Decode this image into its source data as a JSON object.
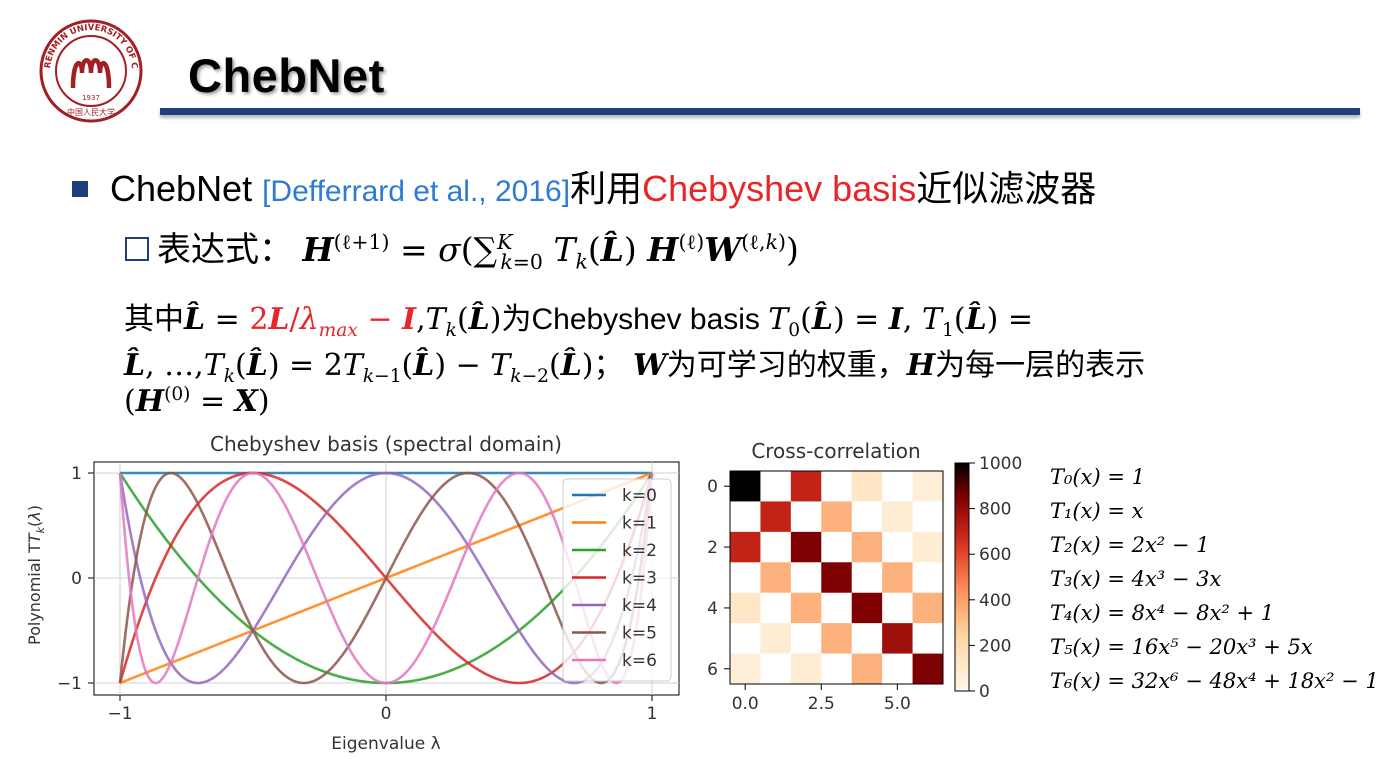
{
  "title": "ChebNet",
  "logo": {
    "text_top": "RENMIN UNIVERSITY OF CHINA",
    "year": "1937",
    "text_bottom": "中国人民大学"
  },
  "bullet1": {
    "lead": "ChebNet ",
    "cite": "[Defferrard et al., 2016]",
    "mid": "利用",
    "highlight": "Chebyshev basis",
    "tail": "近似滤波器"
  },
  "bullet2": {
    "label": "表达式："
  },
  "para": {
    "prefix": "其中",
    "mid1": "为Chebyshev basis ",
    "line2_mid": "为可学习的权重，",
    "line2_tail": "为每一层的表示"
  },
  "chart_data": [
    {
      "type": "line",
      "title": "Chebyshev basis (spectral domain)",
      "xlabel": "Eigenvalue λ",
      "ylabel": "Polynomial T",
      "xlim": [
        -1,
        1
      ],
      "ylim": [
        -1,
        1
      ],
      "xticks": [
        "−1",
        "0",
        "1"
      ],
      "yticks": [
        "1",
        "0",
        "−1"
      ],
      "grid": true,
      "legend_position": "right",
      "series": [
        {
          "name": "k=0",
          "k": 0,
          "color": "#1f77b4"
        },
        {
          "name": "k=1",
          "k": 1,
          "color": "#ff7f0e"
        },
        {
          "name": "k=2",
          "k": 2,
          "color": "#2ca02c"
        },
        {
          "name": "k=3",
          "k": 3,
          "color": "#d62728"
        },
        {
          "name": "k=4",
          "k": 4,
          "color": "#9467bd"
        },
        {
          "name": "k=5",
          "k": 5,
          "color": "#8c564b"
        },
        {
          "name": "k=6",
          "k": 6,
          "color": "#e377c2"
        }
      ]
    },
    {
      "type": "heatmap",
      "title": "Cross-correlation",
      "colorbar_ticks": [
        "1000",
        "800",
        "600",
        "400",
        "200",
        "0"
      ],
      "yticks": [
        "0",
        "2",
        "4",
        "6"
      ],
      "xticks": [
        "0.0",
        "2.5",
        "5.0"
      ],
      "vmin": 0,
      "vmax": 1000,
      "matrix": [
        [
          1000,
          0,
          700,
          0,
          120,
          0,
          60
        ],
        [
          0,
          700,
          0,
          350,
          0,
          80,
          0
        ],
        [
          700,
          0,
          850,
          0,
          350,
          0,
          80
        ],
        [
          0,
          350,
          0,
          850,
          0,
          350,
          0
        ],
        [
          120,
          0,
          350,
          0,
          850,
          0,
          350
        ],
        [
          0,
          80,
          0,
          350,
          0,
          780,
          0
        ],
        [
          60,
          0,
          80,
          0,
          350,
          0,
          850
        ]
      ]
    }
  ],
  "equations": [
    "T₀(x) = 1",
    "T₁(x) = x",
    "T₂(x) = 2x² − 1",
    "T₃(x) = 4x³ − 3x",
    "T₄(x) = 8x⁴ − 8x² + 1",
    "T₅(x) = 16x⁵ − 20x³ + 5x",
    "T₆(x) = 32x⁶ − 48x⁴ + 18x² − 1"
  ]
}
